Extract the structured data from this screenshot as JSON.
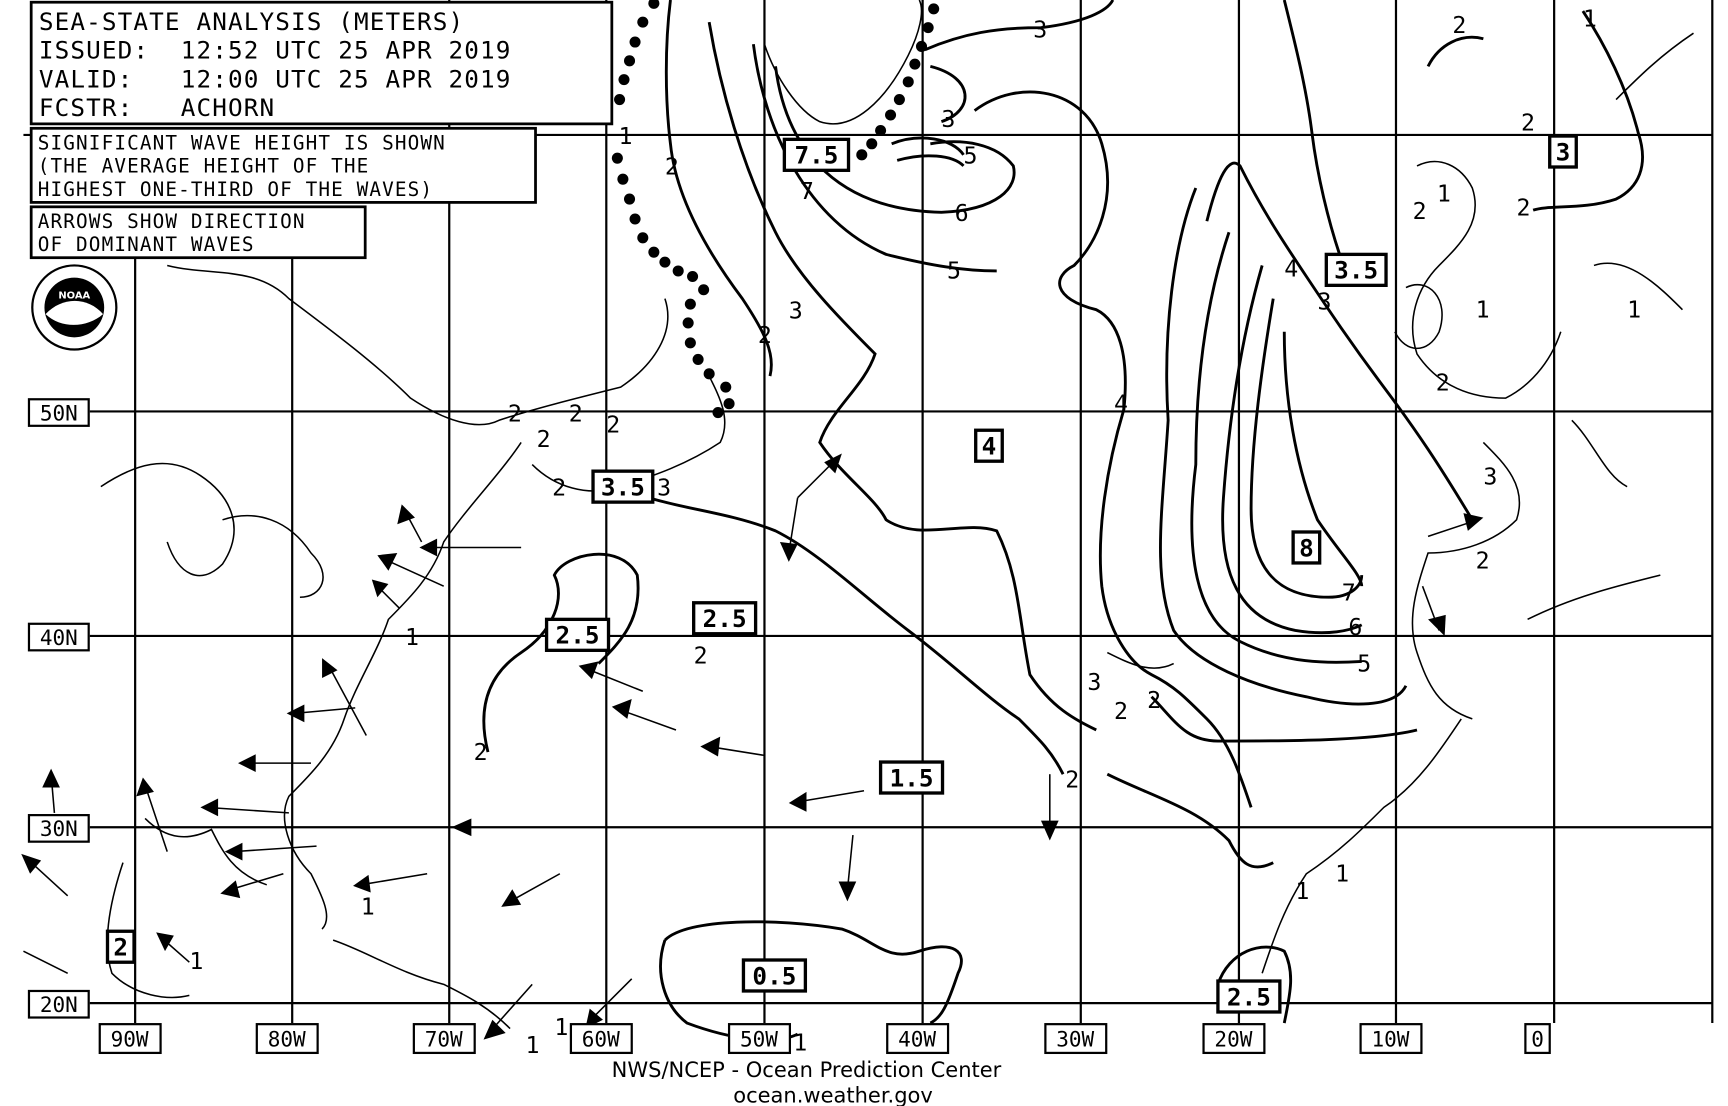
{
  "header": {
    "title": "SEA-STATE ANALYSIS (METERS)",
    "issued": "ISSUED:  12:52 UTC 25 APR 2019",
    "valid": "VALID:   12:00 UTC 25 APR 2019",
    "forecaster": "FCSTR:   ACHORN"
  },
  "notes": {
    "wave_height": [
      "SIGNIFICANT WAVE HEIGHT IS SHOWN",
      "(THE AVERAGE HEIGHT OF THE",
      "HIGHEST ONE-THIRD OF THE WAVES)"
    ],
    "arrows": [
      "ARROWS SHOW DIRECTION",
      "OF DOMINANT WAVES"
    ]
  },
  "logo": "NOAA",
  "axes": {
    "longitudes": [
      "90W",
      "80W",
      "70W",
      "60W",
      "50W",
      "40W",
      "30W",
      "20W",
      "10W",
      "0"
    ],
    "latitudes": [
      "50N",
      "40N",
      "30N",
      "20N"
    ]
  },
  "boxed_values": [
    "7.5",
    "3.5",
    "3",
    "4",
    "8",
    "3.5",
    "2.5",
    "2.5",
    "1.5",
    "0.5",
    "2.5",
    "2"
  ],
  "contour_labels": [
    "3",
    "2",
    "1",
    "1",
    "2",
    "2",
    "3",
    "5",
    "6",
    "5",
    "4",
    "7",
    "3",
    "4",
    "3",
    "2",
    "2",
    "1",
    "1",
    "1",
    "2",
    "2",
    "3",
    "7",
    "6",
    "5",
    "2",
    "3",
    "2",
    "2",
    "2",
    "2",
    "2",
    "2",
    "1",
    "1",
    "1",
    "1",
    "2",
    "2",
    "1",
    "1",
    "2",
    "1",
    "3",
    "2",
    "1"
  ],
  "footer": {
    "line1": "NWS/NCEP - Ocean Prediction Center",
    "line2": "ocean.weather.gov"
  },
  "colors": {
    "ink": "#000000",
    "background": "#ffffff"
  }
}
